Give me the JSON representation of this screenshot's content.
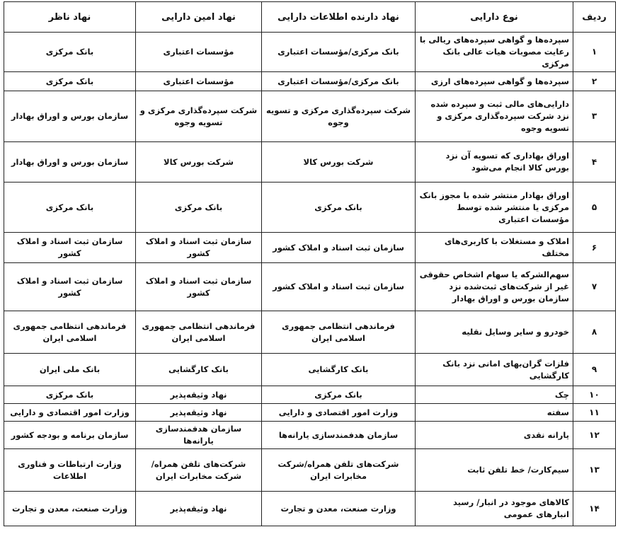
{
  "headers": [
    "ردیف",
    "نوع دارایی",
    "نهاد دارنده اطلاعات دارایی",
    "نهاد امین دارایی",
    "نهاد ناظر"
  ],
  "rows": [
    {
      "num": "۱",
      "asset": "سپرده‌ها و گواهی سپرده‌های ریالی با رعایت مصوبات هیات عالی بانک مرکزی",
      "holder": "بانک مرکزی/مؤسسات اعتباری",
      "custodian": "مؤسسات اعتباری",
      "supervisor": "بانک مرکزی"
    },
    {
      "num": "۲",
      "asset": "سپرده‌ها و گواهی سپرده‌های ارزی",
      "holder": "بانک مرکزی/مؤسسات اعتباری",
      "custodian": "مؤسسات اعتباری",
      "supervisor": "بانک مرکزی"
    },
    {
      "num": "۳",
      "asset": "دارایی‌های مالی ثبت و سپرده شده نزد شرکت سپرده‌گذاری مرکزی و تسویه وجوه",
      "holder": "شرکت سپرده‌گذاری مرکزی و تسویه وجوه",
      "custodian": "شرکت سپرده‌گذاری مرکزی و تسویه وجوه",
      "supervisor": "سازمان بورس و اوراق بهادار"
    },
    {
      "num": "۴",
      "asset": "اوراق بهاداری که تسویه آن نزد بورس کالا انجام می‌شود",
      "holder": "شرکت بورس کالا",
      "custodian": "شرکت بورس کالا",
      "supervisor": "سازمان بورس و اوراق بهادار"
    },
    {
      "num": "۵",
      "asset": "اوراق بهادار منتشر شده با مجوز بانک مرکزی یا منتشر شده توسط مؤسسات اعتباری",
      "holder": "بانک مرکزی",
      "custodian": "بانک مرکزی",
      "supervisor": "بانک مرکزی"
    },
    {
      "num": "۶",
      "asset": "املاک و مستغلات با کاربری‌های مختلف",
      "holder": "سازمان ثبت اسناد و املاک کشور",
      "custodian": "سازمان ثبت اسناد و املاک کشور",
      "supervisor": "سازمان ثبت اسناد و املاک کشور"
    },
    {
      "num": "۷",
      "asset": "سهم‌الشرکه یا سهام اشخاص حقوقی غیر از شرکت‌های ثبت‌شده نزد سازمان بورس و اوراق بهادار",
      "holder": "سازمان ثبت اسناد و املاک کشور",
      "custodian": "سازمان ثبت اسناد و املاک کشور",
      "supervisor": "سازمان ثبت اسناد و املاک کشور"
    },
    {
      "num": "۸",
      "asset": "خودرو و سایر وسایل نقلیه",
      "holder": "فرماندهی انتظامی جمهوری اسلامی ایران",
      "custodian": "فرماندهی انتظامی جمهوری اسلامی ایران",
      "supervisor": "فرماندهی انتظامی جمهوری اسلامی ایران"
    },
    {
      "num": "۹",
      "asset": "فلزات گران‌بهای امانی نزد بانک کارگشایی",
      "holder": "بانک کارگشایی",
      "custodian": "بانک کارگشایی",
      "supervisor": "بانک ملی ایران"
    },
    {
      "num": "۱۰",
      "asset": "چک",
      "holder": "بانک مرکزی",
      "custodian": "نهاد وثیقه‌پذیر",
      "supervisor": "بانک مرکزی"
    },
    {
      "num": "۱۱",
      "asset": "سفته",
      "holder": "وزارت امور اقتصادی و دارایی",
      "custodian": "نهاد وثیقه‌پذیر",
      "supervisor": "وزارت امور اقتصادی و دارایی"
    },
    {
      "num": "۱۲",
      "asset": "یارانه نقدی",
      "holder": "سازمان هدفمندسازی یارانه‌ها",
      "custodian": "سازمان هدفمندسازی یارانه‌ها",
      "supervisor": "سازمان برنامه و بودجه کشور"
    },
    {
      "num": "۱۳",
      "asset": "سیم‌کارت/ خط تلفن ثابت",
      "holder": "شرکت‌های تلفن همراه/شرکت مخابرات ایران",
      "custodian": "شرکت‌های تلفن همراه/شرکت مخابرات ایران",
      "supervisor": "وزارت ارتباطات و فناوری اطلاعات"
    },
    {
      "num": "۱۴",
      "asset": "کالاهای موجود در انبار/ رسید انبارهای عمومی",
      "holder": "وزارت صنعت، معدن و تجارت",
      "custodian": "نهاد وثیقه‌پذیر",
      "supervisor": "وزارت صنعت، معدن و تجارت"
    }
  ]
}
